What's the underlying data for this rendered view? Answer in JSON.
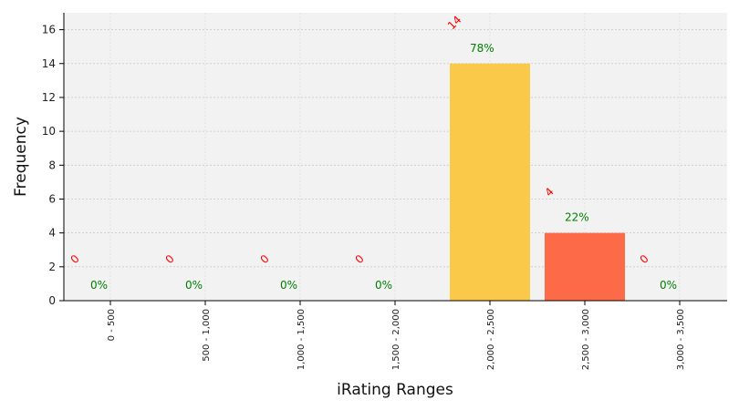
{
  "chart_data": {
    "type": "bar",
    "title": "",
    "xlabel": "iRating Ranges",
    "ylabel": "Frequency",
    "categories": [
      "0 - 500",
      "500 - 1,000",
      "1,000 - 1,500",
      "1,500 - 2,000",
      "2,000 - 2,500",
      "2,500 - 3,000",
      "3,000 - 3,500"
    ],
    "values": [
      0,
      0,
      0,
      0,
      14,
      4,
      0
    ],
    "percent_labels": [
      "0%",
      "0%",
      "0%",
      "0%",
      "78%",
      "22%",
      "0%"
    ],
    "count_labels": [
      "0",
      "0",
      "0",
      "0",
      "14",
      "4",
      "0"
    ],
    "bar_colors": [
      "#fbc02d",
      "#fbc02d",
      "#fbc02d",
      "#fbc02d",
      "#fbc94a",
      "#fd6a48",
      "#fbc02d"
    ],
    "ylim": [
      0,
      17
    ],
    "yticks": [
      0,
      2,
      4,
      6,
      8,
      10,
      12,
      14,
      16
    ],
    "grid": true,
    "background_color": "#f2f2f2",
    "count_label_color": "#ff0000",
    "percent_label_color": "#008000"
  }
}
